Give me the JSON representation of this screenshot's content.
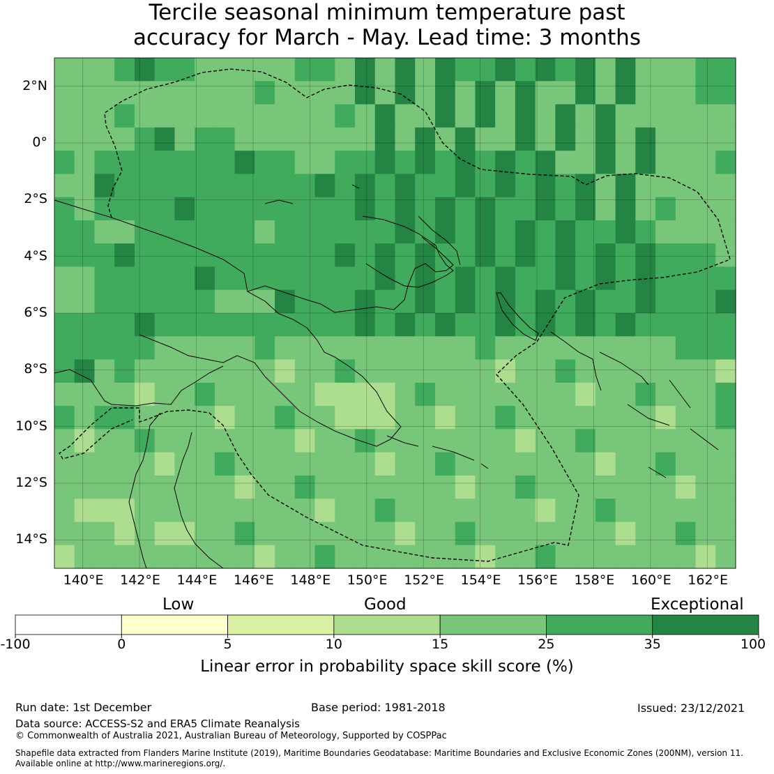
{
  "title_line1": "Tercile seasonal minimum temperature past",
  "title_line2": "accuracy for March - May. Lead time: 3 months",
  "map": {
    "lon_range": [
      139,
      163
    ],
    "lat_range": [
      -15,
      3
    ],
    "lat_ticks": [
      {
        "value": 2,
        "label": "2°N"
      },
      {
        "value": 0,
        "label": "0°"
      },
      {
        "value": -2,
        "label": "2°S"
      },
      {
        "value": -4,
        "label": "4°S"
      },
      {
        "value": -6,
        "label": "6°S"
      },
      {
        "value": -8,
        "label": "8°S"
      },
      {
        "value": -10,
        "label": "10°S"
      },
      {
        "value": -12,
        "label": "12°S"
      },
      {
        "value": -14,
        "label": "14°S"
      }
    ],
    "lon_ticks": [
      {
        "value": 140,
        "label": "140°E"
      },
      {
        "value": 142,
        "label": "142°E"
      },
      {
        "value": 144,
        "label": "144°E"
      },
      {
        "value": 146,
        "label": "146°E"
      },
      {
        "value": 148,
        "label": "148°E"
      },
      {
        "value": 150,
        "label": "150°E"
      },
      {
        "value": 152,
        "label": "152°E"
      },
      {
        "value": 154,
        "label": "154°E"
      },
      {
        "value": 156,
        "label": "156°E"
      },
      {
        "value": 158,
        "label": "158°E"
      },
      {
        "value": 160,
        "label": "160°E"
      },
      {
        "value": 162,
        "label": "162°E"
      }
    ],
    "dominant_category": "25-35",
    "exceptional_region": "New Ireland / Bougainville to 162°E, 2°S–6°S",
    "low_skill_region": "southern Cape York and Solomon Sea near 151°E 8°S"
  },
  "colorbar": {
    "category_labels": [
      "Low",
      "Good",
      "Exceptional"
    ],
    "boundaries": [
      "-100",
      "0",
      "5",
      "10",
      "15",
      "25",
      "35",
      "100"
    ],
    "colors": [
      "#ffffff",
      "#ffffcc",
      "#d9f0a3",
      "#addd8e",
      "#78c679",
      "#41ab5d",
      "#238443"
    ],
    "axis_label": "Linear error in probability space skill score (%)"
  },
  "footer": {
    "run_date": "Run date: 1st December",
    "base_period": "Base period: 1981-2018",
    "issued": "Issued: 23/12/2021",
    "data_source": "Data source: ACCESS-S2 and ERA5 Climate Reanalysis",
    "copyright": "© Commonwealth of Australia 2021, Australian Bureau of Meteorology, Supported by COSPPac",
    "shapefile_line1": "Shapefile data extracted from Flanders Marine Institute (2019), Maritime Boundaries Geodatabase: Maritime Boundaries and Exclusive Economic Zones (200NM), version 11.",
    "shapefile_line2": "Available online at http://www.marineregions.org/."
  }
}
